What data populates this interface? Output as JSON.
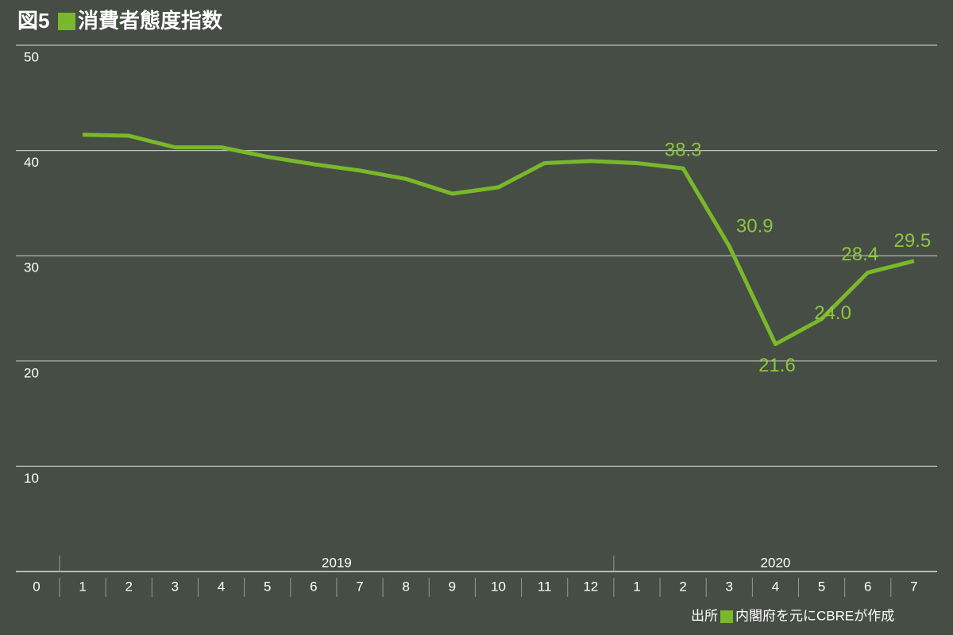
{
  "chart_data": {
    "type": "line",
    "figure_label": "図5",
    "title": "消費者態度指数",
    "source_label": "出所",
    "source": "内閣府を元にCBREが作成",
    "categories": [
      "1",
      "2",
      "3",
      "4",
      "5",
      "6",
      "7",
      "8",
      "9",
      "10",
      "11",
      "12",
      "1",
      "2",
      "3",
      "4",
      "5",
      "6",
      "7"
    ],
    "groups": [
      {
        "label": "2019",
        "span": 12
      },
      {
        "label": "2020",
        "span": 7
      }
    ],
    "series": [
      {
        "name": "消費者態度指数",
        "color": "#79b82a",
        "values": [
          41.5,
          41.4,
          40.3,
          40.3,
          39.4,
          38.7,
          38.1,
          37.3,
          35.9,
          36.5,
          38.8,
          39.0,
          38.8,
          38.3,
          30.9,
          21.6,
          24.0,
          28.4,
          29.5
        ],
        "value_labels": [
          null,
          null,
          null,
          null,
          null,
          null,
          null,
          null,
          null,
          null,
          null,
          null,
          null,
          "38.3",
          "30.9",
          "21.6",
          "24.0",
          "28.4",
          "29.5"
        ]
      }
    ],
    "ylim": [
      0,
      50
    ],
    "yticks": [
      0,
      10,
      20,
      30,
      40,
      50
    ],
    "grid": true
  }
}
